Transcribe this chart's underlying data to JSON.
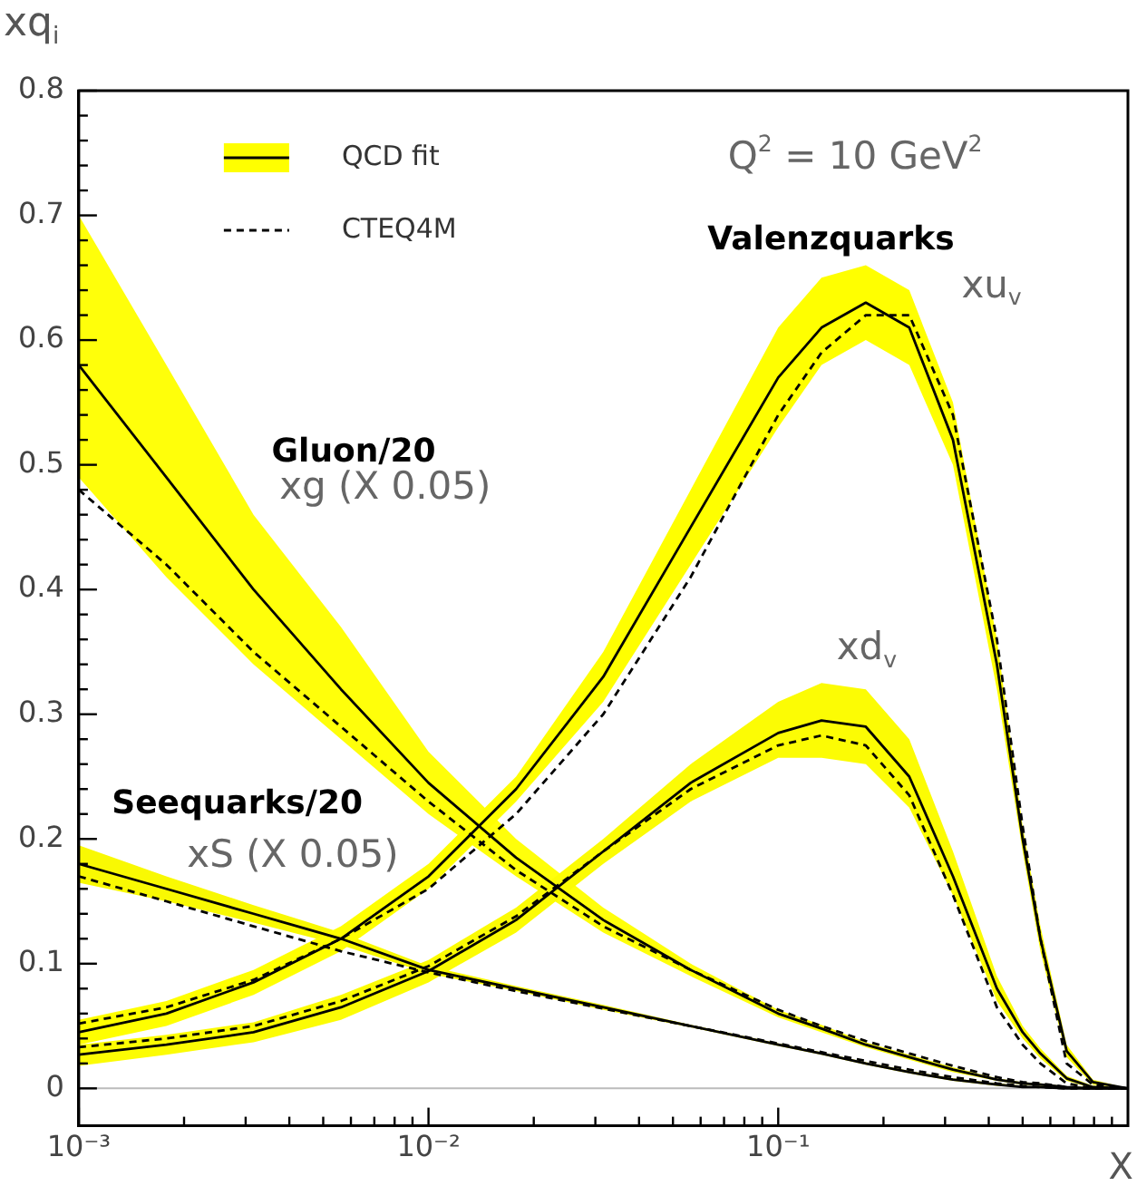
{
  "chart_data": {
    "type": "line",
    "xlabel": "X",
    "ylabel": "xq$_{i}$",
    "x": [
      0.001,
      0.00178,
      0.00316,
      0.00562,
      0.01,
      0.0178,
      0.0316,
      0.0562,
      0.1,
      0.133,
      0.178,
      0.237,
      0.316,
      0.422,
      0.5,
      0.562,
      0.668,
      0.794,
      1
    ],
    "series": [
      {
        "name": "QCD fit",
        "color": "#000000",
        "line_style": "solid",
        "values": [
          0.045,
          0.06,
          0.085,
          0.12,
          0.17,
          0.24,
          0.33,
          0.45,
          0.57,
          0.61,
          0.63,
          0.61,
          0.52,
          0.34,
          0.2,
          0.12,
          0.03,
          0.005,
          0
        ],
        "lower": [
          0.035,
          0.05,
          0.075,
          0.11,
          0.16,
          0.23,
          0.31,
          0.42,
          0.53,
          0.58,
          0.6,
          0.58,
          0.5,
          0.32,
          0.19,
          0.11,
          0.025,
          0.003,
          0
        ],
        "upper": [
          0.055,
          0.07,
          0.095,
          0.13,
          0.18,
          0.25,
          0.35,
          0.48,
          0.61,
          0.65,
          0.66,
          0.64,
          0.55,
          0.36,
          0.21,
          0.13,
          0.035,
          0.007,
          0
        ]
      },
      {
        "color": "#000000",
        "line_style": "solid",
        "values": [
          0.027,
          0.035,
          0.045,
          0.065,
          0.094,
          0.135,
          0.19,
          0.245,
          0.285,
          0.295,
          0.29,
          0.25,
          0.17,
          0.08,
          0.045,
          0.028,
          0.008,
          0.001,
          0
        ],
        "lower": [
          0.018,
          0.027,
          0.037,
          0.055,
          0.085,
          0.125,
          0.18,
          0.23,
          0.265,
          0.265,
          0.26,
          0.225,
          0.155,
          0.07,
          0.04,
          0.024,
          0.006,
          0,
          0
        ],
        "upper": [
          0.035,
          0.043,
          0.053,
          0.075,
          0.103,
          0.145,
          0.2,
          0.26,
          0.31,
          0.325,
          0.32,
          0.28,
          0.19,
          0.09,
          0.05,
          0.032,
          0.01,
          0.002,
          0
        ]
      },
      {
        "color": "#000000",
        "line_style": "solid",
        "values": [
          0.58,
          0.49,
          0.4,
          0.32,
          0.245,
          0.185,
          0.135,
          0.095,
          0.06,
          0.048,
          0.035,
          0.025,
          0.015,
          0.007,
          0.004,
          0.003,
          0.001,
          0,
          0
        ],
        "lower": [
          0.49,
          0.41,
          0.34,
          0.28,
          0.22,
          0.17,
          0.125,
          0.09,
          0.057,
          0.045,
          0.033,
          0.023,
          0.013,
          0.006,
          0.003,
          0.002,
          0.0005,
          0,
          0
        ],
        "upper": [
          0.7,
          0.58,
          0.46,
          0.37,
          0.27,
          0.2,
          0.145,
          0.1,
          0.063,
          0.051,
          0.037,
          0.027,
          0.017,
          0.008,
          0.005,
          0.004,
          0.0015,
          0.001,
          0
        ]
      },
      {
        "color": "#000000",
        "line_style": "solid",
        "values": [
          0.18,
          0.16,
          0.14,
          0.12,
          0.095,
          0.08,
          0.065,
          0.05,
          0.035,
          0.028,
          0.02,
          0.013,
          0.007,
          0.003,
          0.001,
          0.001,
          0,
          0,
          0
        ],
        "lower": [
          0.165,
          0.15,
          0.133,
          0.115,
          0.092,
          0.078,
          0.063,
          0.049,
          0.034,
          0.027,
          0.019,
          0.012,
          0.006,
          0.002,
          0.001,
          0,
          0,
          0,
          0
        ],
        "upper": [
          0.195,
          0.17,
          0.147,
          0.125,
          0.098,
          0.082,
          0.067,
          0.051,
          0.036,
          0.029,
          0.021,
          0.014,
          0.008,
          0.004,
          0.002,
          0.001,
          0,
          0,
          0
        ]
      },
      {
        "name": "CTEQ4M",
        "color": "#000000",
        "line_style": "dashed",
        "values": [
          0.052,
          0.065,
          0.087,
          0.12,
          0.16,
          0.22,
          0.3,
          0.41,
          0.54,
          0.59,
          0.62,
          0.62,
          0.54,
          0.36,
          0.21,
          0.12,
          0.02,
          0.003,
          0
        ]
      },
      {
        "color": "#000000",
        "line_style": "dashed",
        "values": [
          0.033,
          0.04,
          0.05,
          0.07,
          0.098,
          0.138,
          0.19,
          0.24,
          0.275,
          0.283,
          0.275,
          0.235,
          0.155,
          0.065,
          0.035,
          0.02,
          0.004,
          0,
          0
        ]
      },
      {
        "color": "#000000",
        "line_style": "dashed",
        "values": [
          0.48,
          0.42,
          0.35,
          0.29,
          0.23,
          0.175,
          0.13,
          0.095,
          0.063,
          0.05,
          0.038,
          0.028,
          0.018,
          0.009,
          0.005,
          0.004,
          0.001,
          0,
          0
        ]
      },
      {
        "color": "#000000",
        "line_style": "dashed",
        "values": [
          0.17,
          0.15,
          0.13,
          0.11,
          0.093,
          0.078,
          0.064,
          0.05,
          0.036,
          0.029,
          0.022,
          0.015,
          0.009,
          0.004,
          0.002,
          0.001,
          0,
          0,
          0
        ]
      }
    ],
    "xlim": [
      0.001,
      1
    ],
    "ylim": [
      -0.03,
      0.8
    ],
    "log": "x",
    "grid": false,
    "legend": "top left",
    "marker": "none",
    "xticks": [
      {
        "value": 0.001,
        "label": "10⁻³"
      },
      {
        "value": 0.002,
        "label": null
      },
      {
        "value": 0.003,
        "label": null
      },
      {
        "value": 0.004,
        "label": null
      },
      {
        "value": 0.005,
        "label": null
      },
      {
        "value": 0.006,
        "label": null
      },
      {
        "value": 0.007,
        "label": null
      },
      {
        "value": 0.008,
        "label": null
      },
      {
        "value": 0.009,
        "label": null
      },
      {
        "value": 0.01,
        "label": "10⁻²"
      },
      {
        "value": 0.02,
        "label": null
      },
      {
        "value": 0.03,
        "label": null
      },
      {
        "value": 0.04,
        "label": null
      },
      {
        "value": 0.05,
        "label": null
      },
      {
        "value": 0.06,
        "label": null
      },
      {
        "value": 0.07,
        "label": null
      },
      {
        "value": 0.08,
        "label": null
      },
      {
        "value": 0.09,
        "label": null
      },
      {
        "value": 0.1,
        "label": "10⁻¹"
      },
      {
        "value": 0.2,
        "label": null
      },
      {
        "value": 0.3,
        "label": null
      },
      {
        "value": 0.4,
        "label": null
      },
      {
        "value": 0.5,
        "label": null
      },
      {
        "value": 0.6,
        "label": null
      },
      {
        "value": 0.7,
        "label": null
      },
      {
        "value": 0.8,
        "label": null
      },
      {
        "value": 0.9,
        "label": null
      }
    ],
    "yticks": [
      0,
      {
        "value": 0.02,
        "label": null
      },
      {
        "value": 0.04,
        "label": null
      },
      {
        "value": 0.06,
        "label": null
      },
      {
        "value": 0.08,
        "label": null
      },
      0.1,
      {
        "value": 0.12,
        "label": null
      },
      {
        "value": 0.14,
        "label": null
      },
      {
        "value": 0.16,
        "label": null
      },
      {
        "value": 0.18,
        "label": null
      },
      0.2,
      {
        "value": 0.22,
        "label": null
      },
      {
        "value": 0.24,
        "label": null
      },
      {
        "value": 0.26,
        "label": null
      },
      {
        "value": 0.28,
        "label": null
      },
      0.3,
      {
        "value": 0.32,
        "label": null
      },
      {
        "value": 0.34,
        "label": null
      },
      {
        "value": 0.36,
        "label": null
      },
      {
        "value": 0.38,
        "label": null
      },
      0.4,
      {
        "value": 0.42,
        "label": null
      },
      {
        "value": 0.44,
        "label": null
      },
      {
        "value": 0.46,
        "label": null
      },
      {
        "value": 0.48,
        "label": null
      },
      0.5,
      {
        "value": 0.52,
        "label": null
      },
      {
        "value": 0.54,
        "label": null
      },
      {
        "value": 0.56,
        "label": null
      },
      {
        "value": 0.58,
        "label": null
      },
      0.6,
      {
        "value": 0.62,
        "label": null
      },
      {
        "value": 0.64,
        "label": null
      },
      {
        "value": 0.66,
        "label": null
      },
      {
        "value": 0.68,
        "label": null
      },
      0.7,
      {
        "value": 0.72,
        "label": null
      },
      {
        "value": 0.74,
        "label": null
      },
      {
        "value": 0.76,
        "label": null
      },
      {
        "value": 0.78,
        "label": null
      },
      0.8
    ],
    "ref_lines": [
      {
        "axis": "y",
        "value": 0,
        "color": "#bbbbbb"
      }
    ],
    "annotations": [
      "Q$^{2}$ = 10 GeV$^{2}$",
      "Valenzquarks",
      "xu$_{v}$",
      "Gluon/20",
      "xg (X 0.05)",
      "Seequarks/20",
      "xS (X 0.05)",
      "xd$_{v}$"
    ]
  }
}
